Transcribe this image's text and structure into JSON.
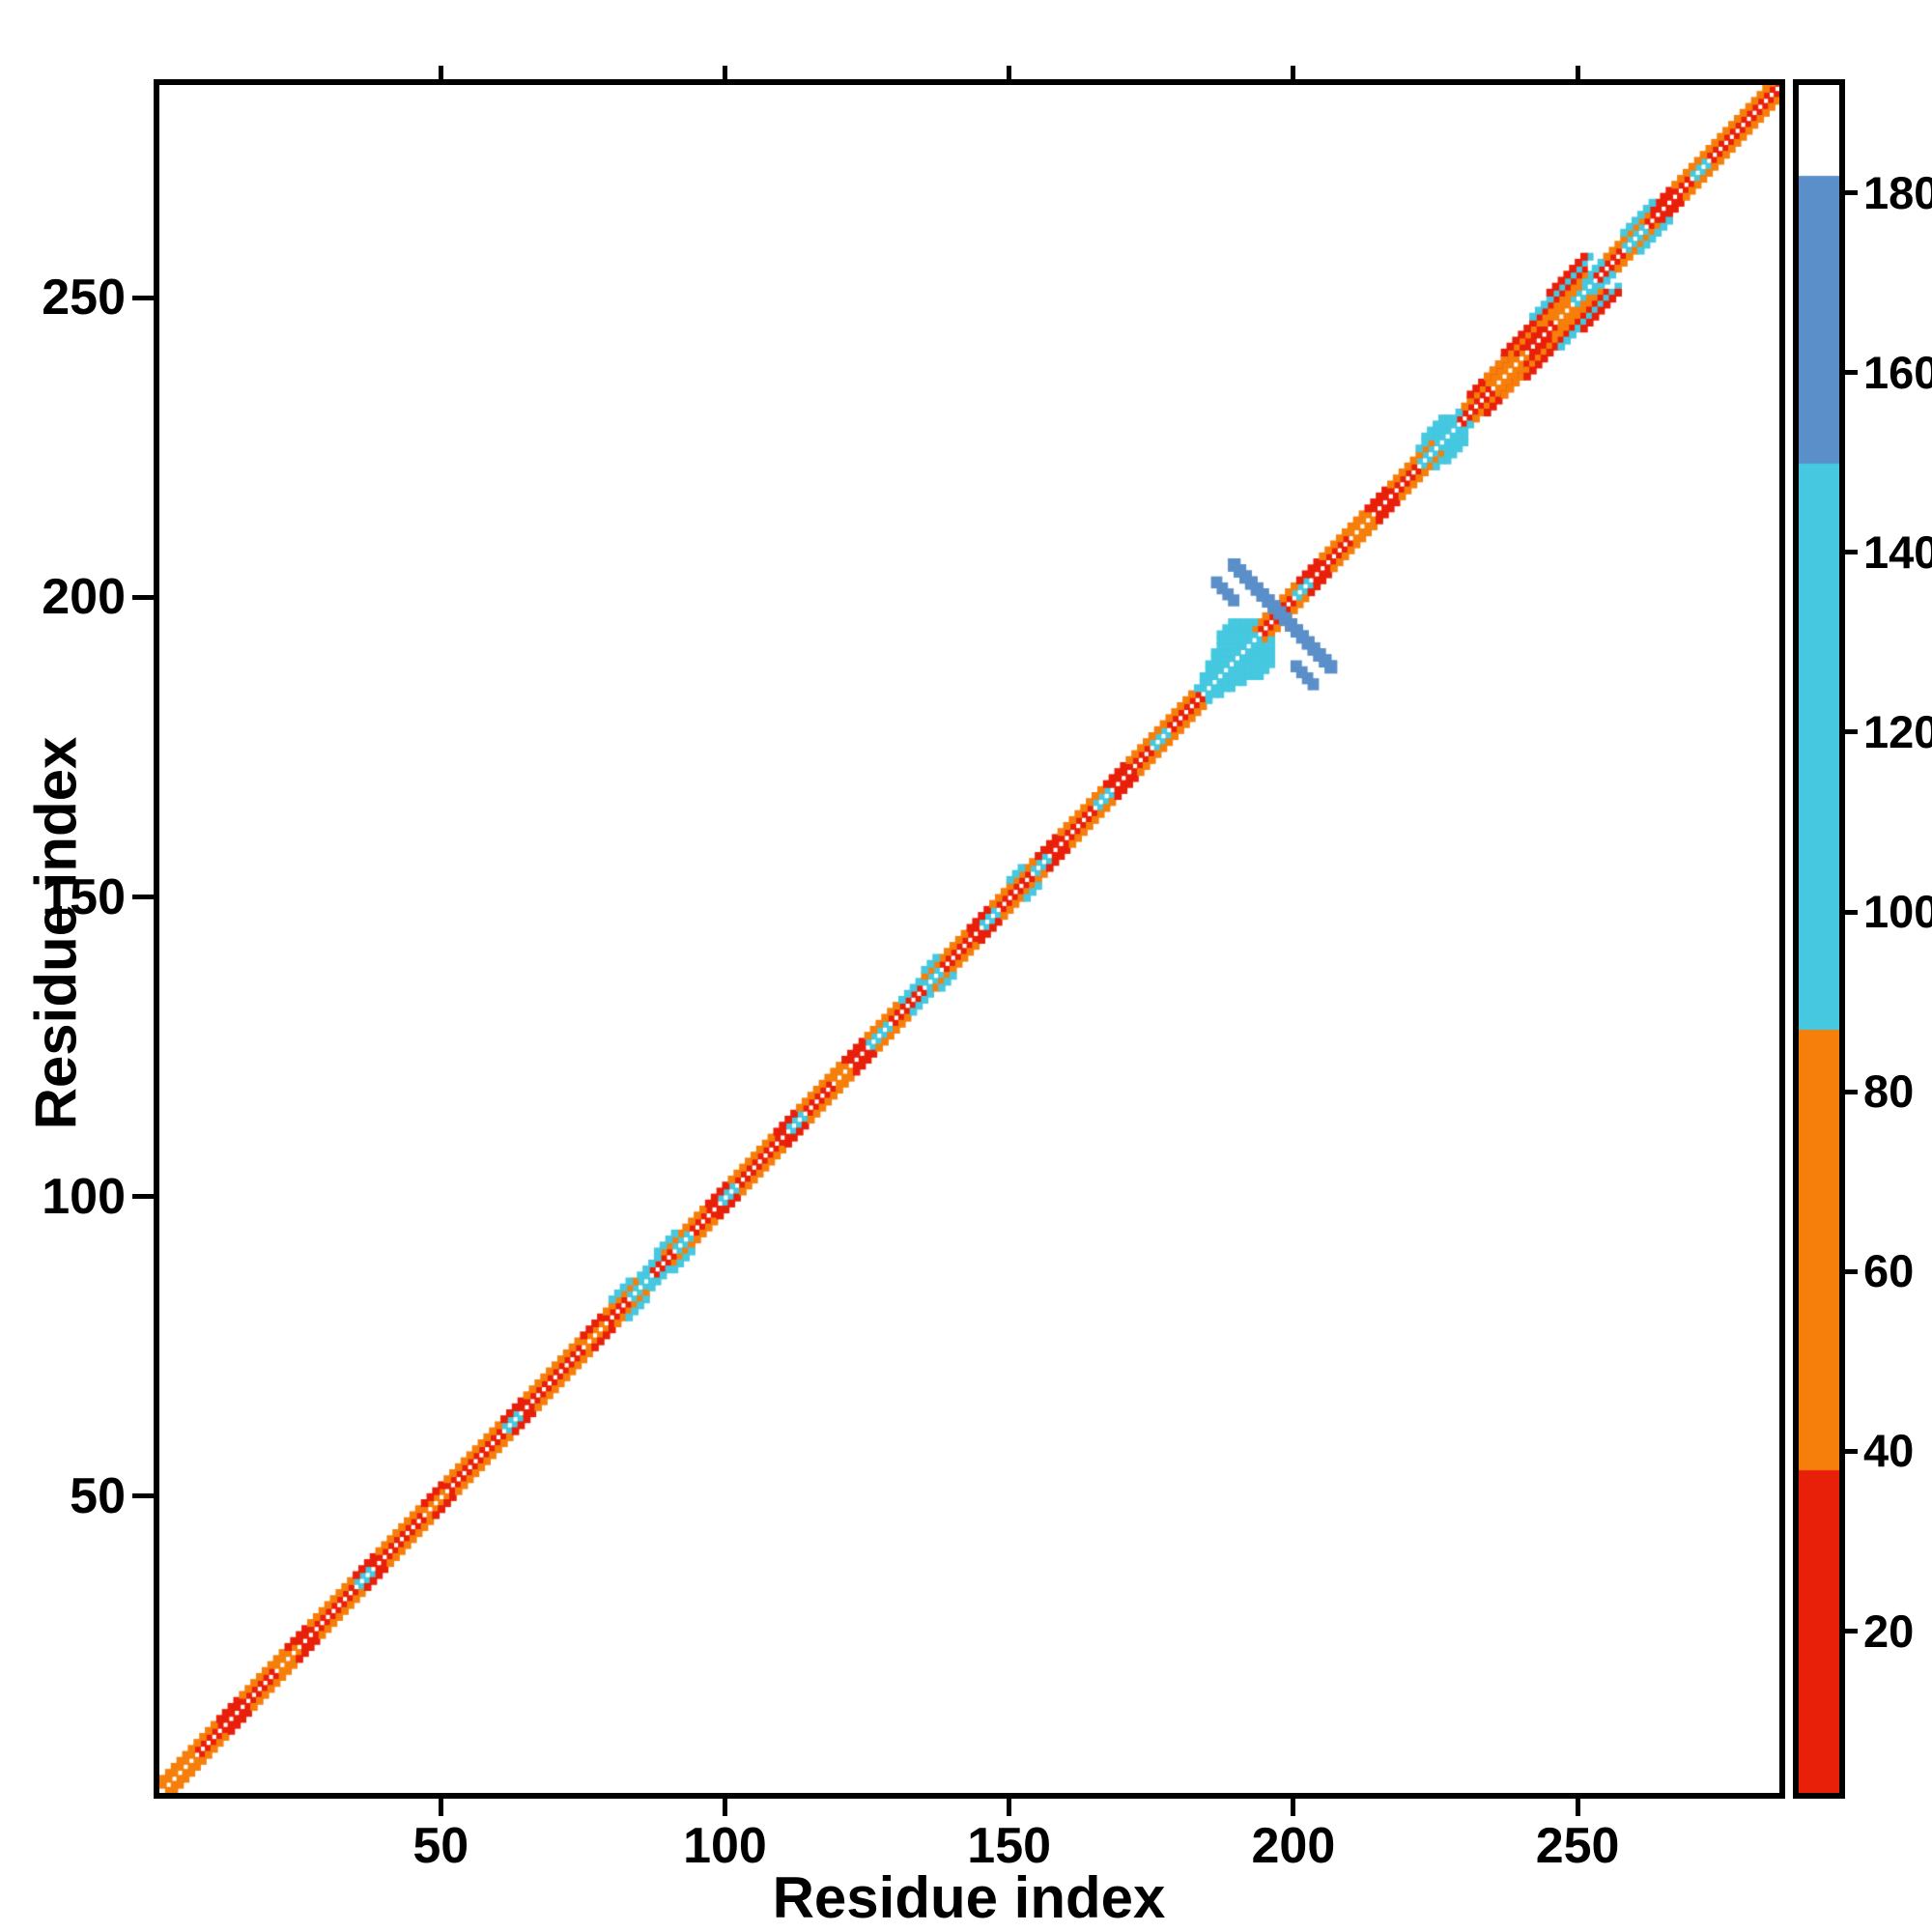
{
  "chart_data": {
    "type": "heatmap",
    "title": "",
    "xlabel": "Residue index",
    "ylabel": "Residue index",
    "x_range": [
      1,
      285
    ],
    "y_range": [
      1,
      285
    ],
    "x_ticks": [
      50,
      100,
      150,
      200,
      250
    ],
    "y_ticks": [
      50,
      100,
      150,
      200,
      250
    ],
    "grid": false,
    "background": "#ffffff",
    "palette": {
      "rd": "#e8200a",
      "or": "#f67f0b",
      "cy": "#45c8e0",
      "bl": "#5b8fc9",
      "wh": "#ffffff"
    },
    "colorbar": {
      "range": [
        2,
        192
      ],
      "ticks": [
        20,
        40,
        60,
        80,
        100,
        120,
        140,
        160,
        180
      ],
      "segments": [
        {
          "from": 2,
          "to": 38,
          "color": "#e8200a"
        },
        {
          "from": 38,
          "to": 87,
          "color": "#f67f0b"
        },
        {
          "from": 87,
          "to": 150,
          "color": "#45c8e0"
        },
        {
          "from": 150,
          "to": 182,
          "color": "#5b8fc9"
        },
        {
          "from": 182,
          "to": 192,
          "color": "#ffffff"
        }
      ]
    },
    "diagonal_runs": [
      [
        1,
        6,
        1,
        "or"
      ],
      [
        7,
        20,
        1,
        "rd"
      ],
      [
        21,
        24,
        1,
        "or"
      ],
      [
        25,
        34,
        1,
        "rd"
      ],
      [
        35,
        37,
        1,
        "cy"
      ],
      [
        38,
        46,
        1,
        "rd"
      ],
      [
        47,
        50,
        1,
        "or"
      ],
      [
        51,
        60,
        1,
        "rd"
      ],
      [
        61,
        63,
        1,
        "cy"
      ],
      [
        64,
        74,
        1,
        "rd"
      ],
      [
        75,
        78,
        1,
        "or"
      ],
      [
        79,
        82,
        1,
        "rd"
      ],
      [
        83,
        86,
        1,
        "cy"
      ],
      [
        87,
        90,
        1,
        "rd"
      ],
      [
        91,
        93,
        1,
        "cy"
      ],
      [
        94,
        98,
        1,
        "rd"
      ],
      [
        99,
        101,
        1,
        "cy"
      ],
      [
        102,
        110,
        1,
        "rd"
      ],
      [
        111,
        113,
        1,
        "cy"
      ],
      [
        114,
        118,
        1,
        "rd"
      ],
      [
        119,
        121,
        1,
        "or"
      ],
      [
        122,
        124,
        1,
        "rd"
      ],
      [
        125,
        128,
        1,
        "cy"
      ],
      [
        129,
        134,
        1,
        "rd"
      ],
      [
        135,
        137,
        1,
        "cy"
      ],
      [
        138,
        144,
        1,
        "rd"
      ],
      [
        145,
        147,
        1,
        "cy"
      ],
      [
        148,
        153,
        1,
        "rd"
      ],
      [
        154,
        156,
        1,
        "cy"
      ],
      [
        157,
        164,
        1,
        "rd"
      ],
      [
        165,
        167,
        1,
        "cy"
      ],
      [
        168,
        174,
        1,
        "rd"
      ],
      [
        175,
        177,
        1,
        "cy"
      ],
      [
        178,
        183,
        1,
        "rd"
      ],
      [
        184,
        193,
        1,
        "cy"
      ],
      [
        194,
        199,
        1,
        "rd"
      ],
      [
        200,
        202,
        1,
        "cy"
      ],
      [
        203,
        209,
        1,
        "rd"
      ],
      [
        210,
        213,
        1,
        "or"
      ],
      [
        214,
        221,
        1,
        "rd"
      ],
      [
        222,
        228,
        1,
        "cy"
      ],
      [
        229,
        234,
        1,
        "rd"
      ],
      [
        235,
        240,
        1,
        "or"
      ],
      [
        241,
        245,
        1,
        "rd"
      ],
      [
        246,
        248,
        1,
        "or"
      ],
      [
        249,
        252,
        1,
        "cy"
      ],
      [
        253,
        257,
        1,
        "rd"
      ],
      [
        258,
        261,
        1,
        "cy"
      ],
      [
        262,
        269,
        1,
        "rd"
      ],
      [
        270,
        272,
        1,
        "cy"
      ],
      [
        273,
        285,
        1,
        "rd"
      ],
      [
        1,
        10,
        2,
        "or"
      ],
      [
        11,
        14,
        2,
        "rd"
      ],
      [
        15,
        22,
        2,
        "or"
      ],
      [
        23,
        26,
        2,
        "rd"
      ],
      [
        27,
        34,
        2,
        "or"
      ],
      [
        35,
        38,
        2,
        "rd"
      ],
      [
        39,
        46,
        2,
        "or"
      ],
      [
        47,
        50,
        2,
        "rd"
      ],
      [
        51,
        60,
        2,
        "or"
      ],
      [
        61,
        64,
        2,
        "rd"
      ],
      [
        65,
        74,
        2,
        "or"
      ],
      [
        75,
        78,
        2,
        "rd"
      ],
      [
        79,
        84,
        2,
        "or"
      ],
      [
        85,
        88,
        2,
        "cy"
      ],
      [
        89,
        96,
        2,
        "or"
      ],
      [
        97,
        100,
        2,
        "rd"
      ],
      [
        101,
        108,
        2,
        "or"
      ],
      [
        109,
        112,
        2,
        "rd"
      ],
      [
        113,
        120,
        2,
        "or"
      ],
      [
        121,
        124,
        2,
        "rd"
      ],
      [
        125,
        130,
        2,
        "or"
      ],
      [
        131,
        134,
        2,
        "cy"
      ],
      [
        135,
        142,
        2,
        "or"
      ],
      [
        143,
        146,
        2,
        "rd"
      ],
      [
        147,
        154,
        2,
        "or"
      ],
      [
        155,
        158,
        2,
        "rd"
      ],
      [
        159,
        166,
        2,
        "or"
      ],
      [
        167,
        170,
        2,
        "rd"
      ],
      [
        171,
        182,
        2,
        "or"
      ],
      [
        183,
        192,
        2,
        "cy"
      ],
      [
        193,
        200,
        2,
        "or"
      ],
      [
        201,
        204,
        2,
        "rd"
      ],
      [
        205,
        212,
        2,
        "or"
      ],
      [
        213,
        216,
        2,
        "rd"
      ],
      [
        217,
        224,
        2,
        "or"
      ],
      [
        225,
        229,
        2,
        "cy"
      ],
      [
        230,
        238,
        2,
        "or"
      ],
      [
        239,
        243,
        2,
        "rd"
      ],
      [
        244,
        250,
        2,
        "or"
      ],
      [
        251,
        254,
        2,
        "cy"
      ],
      [
        255,
        262,
        2,
        "or"
      ],
      [
        263,
        266,
        2,
        "rd"
      ],
      [
        267,
        285,
        2,
        "or"
      ],
      [
        184,
        193,
        3,
        "cy"
      ],
      [
        185,
        192,
        4,
        "cy"
      ],
      [
        186,
        191,
        5,
        "cy"
      ],
      [
        187,
        190,
        6,
        "cy"
      ],
      [
        187,
        189,
        7,
        "cy"
      ],
      [
        222,
        227,
        3,
        "cy"
      ],
      [
        223,
        226,
        4,
        "cy"
      ],
      [
        231,
        237,
        3,
        "rd"
      ],
      [
        234,
        251,
        3,
        "or"
      ],
      [
        237,
        251,
        4,
        "rd"
      ],
      [
        242,
        252,
        5,
        "cy"
      ],
      [
        245,
        251,
        6,
        "rd"
      ],
      [
        258,
        263,
        3,
        "cy"
      ],
      [
        135,
        137,
        3,
        "cy"
      ],
      [
        150,
        152,
        3,
        "cy"
      ],
      [
        88,
        91,
        3,
        "cy"
      ],
      [
        80,
        83,
        3,
        "cy"
      ]
    ],
    "antidiagonal_streaks": [
      {
        "x0": 189,
        "y0": 206,
        "x1": 206,
        "y1": 189,
        "color": "bl",
        "width": 2.2
      },
      {
        "x0": 186,
        "y0": 203,
        "x1": 189,
        "y1": 200,
        "color": "bl",
        "width": 2.0
      }
    ]
  }
}
